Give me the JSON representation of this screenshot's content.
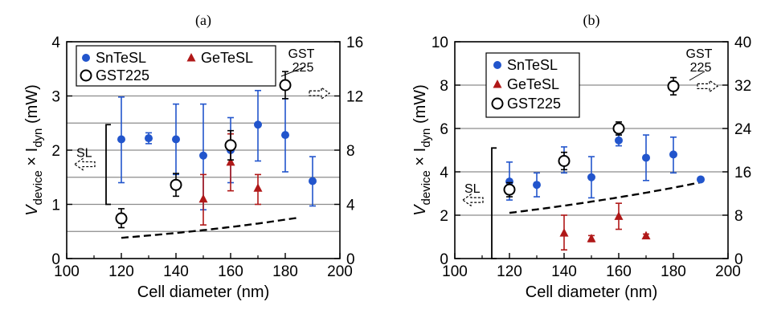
{
  "colors": {
    "snte": "#2255cc",
    "gete": "#b01818",
    "gst": "#000000",
    "grid": "#8c8c8c",
    "bg": "#ffffff"
  },
  "chart_data": [
    {
      "type": "scatter",
      "panel_label": "(a)",
      "xlabel": "Cell diameter (nm)",
      "ylabel_main": "V",
      "ylabel_sub1": "device",
      "ylabel_times": " × I",
      "ylabel_sub2": "dyn",
      "ylabel_unit": " (mW)",
      "xlim": [
        100,
        200
      ],
      "ylim": [
        0,
        4
      ],
      "y2lim": [
        0,
        16
      ],
      "xticks": [
        "100",
        "120",
        "140",
        "160",
        "180",
        "200"
      ],
      "yticks": [
        "0",
        "1",
        "2",
        "3",
        "4"
      ],
      "y2ticks": [
        "0",
        "4",
        "8",
        "12",
        "16"
      ],
      "gridlines": [
        0.5,
        1,
        1.5,
        2,
        2.5,
        3
      ],
      "legend": [
        "SnTeSL",
        "GeTeSL",
        "GST225"
      ],
      "series": [
        {
          "name": "SnTeSL",
          "marker": "circle-filled",
          "points": [
            {
              "x": 120,
              "y": 2.2,
              "lo": 1.4,
              "hi": 2.98
            },
            {
              "x": 130,
              "y": 2.22,
              "lo": 2.12,
              "hi": 2.32
            },
            {
              "x": 140,
              "y": 2.2,
              "lo": 1.55,
              "hi": 2.85
            },
            {
              "x": 150,
              "y": 1.9,
              "lo": 0.9,
              "hi": 2.85
            },
            {
              "x": 160,
              "y": 2.0,
              "lo": 1.4,
              "hi": 2.6
            },
            {
              "x": 170,
              "y": 2.47,
              "lo": 1.8,
              "hi": 3.1
            },
            {
              "x": 180,
              "y": 2.28,
              "lo": 1.6,
              "hi": 2.95
            },
            {
              "x": 190,
              "y": 1.43,
              "lo": 0.97,
              "hi": 1.88
            }
          ]
        },
        {
          "name": "GeTeSL",
          "marker": "triangle-filled",
          "points": [
            {
              "x": 150,
              "y": 1.1,
              "lo": 0.62,
              "hi": 1.55
            },
            {
              "x": 160,
              "y": 1.78,
              "lo": 1.25,
              "hi": 2.3
            },
            {
              "x": 170,
              "y": 1.3,
              "lo": 1.0,
              "hi": 1.55
            }
          ]
        },
        {
          "name": "GST225",
          "marker": "circle-open",
          "points": [
            {
              "x": 120,
              "y": 0.74,
              "lo": 0.57,
              "hi": 0.92
            },
            {
              "x": 140,
              "y": 1.36,
              "lo": 1.15,
              "hi": 1.57
            },
            {
              "x": 160,
              "y": 2.09,
              "lo": 1.82,
              "hi": 2.36
            },
            {
              "x": 180,
              "y": 3.2,
              "lo": 2.95,
              "hi": 3.45
            }
          ]
        }
      ],
      "fit_curve": {
        "style": "dashed",
        "x_start": 120,
        "x_end": 185,
        "a": 0.31,
        "b": 0.105
      },
      "annotations": {
        "sl_label": "SL",
        "sl_bracket": [
          1.0,
          2.47
        ],
        "sl_arrow_y": 1.74,
        "gst_label_1": "GST",
        "gst_label_2": "225",
        "gst_arrow_y": 3.05
      }
    },
    {
      "type": "scatter",
      "panel_label": "(b)",
      "xlabel": "Cell diameter (nm)",
      "ylabel_main": "V",
      "ylabel_sub1": "device",
      "ylabel_times": " × I",
      "ylabel_sub2": "dyn",
      "ylabel_unit": " (mW)",
      "xlim": [
        100,
        200
      ],
      "ylim": [
        0,
        10
      ],
      "y2lim": [
        0,
        40
      ],
      "xticks": [
        "100",
        "120",
        "140",
        "160",
        "180",
        "200"
      ],
      "yticks": [
        "0",
        "2",
        "4",
        "6",
        "8",
        "10"
      ],
      "y2ticks": [
        "0",
        "8",
        "16",
        "24",
        "32",
        "40"
      ],
      "gridlines": [
        2,
        4,
        6,
        8
      ],
      "legend": [
        "SnTeSL",
        "GeTeSL",
        "GST225"
      ],
      "series": [
        {
          "name": "SnTeSL",
          "marker": "circle-filled",
          "points": [
            {
              "x": 120,
              "y": 3.55,
              "lo": 2.7,
              "hi": 4.45
            },
            {
              "x": 130,
              "y": 3.4,
              "lo": 2.85,
              "hi": 3.95
            },
            {
              "x": 140,
              "y": 4.55,
              "lo": 3.95,
              "hi": 5.15
            },
            {
              "x": 150,
              "y": 3.75,
              "lo": 2.8,
              "hi": 4.7
            },
            {
              "x": 160,
              "y": 5.45,
              "lo": 5.2,
              "hi": 5.7
            },
            {
              "x": 170,
              "y": 4.65,
              "lo": 3.6,
              "hi": 5.7
            },
            {
              "x": 180,
              "y": 4.8,
              "lo": 3.95,
              "hi": 5.6
            },
            {
              "x": 190,
              "y": 3.65,
              "lo": 3.57,
              "hi": 3.73
            }
          ]
        },
        {
          "name": "GeTeSL",
          "marker": "triangle-filled",
          "points": [
            {
              "x": 140,
              "y": 1.18,
              "lo": 0.4,
              "hi": 2.0
            },
            {
              "x": 150,
              "y": 0.92,
              "lo": 0.78,
              "hi": 1.06
            },
            {
              "x": 160,
              "y": 1.95,
              "lo": 1.35,
              "hi": 2.55
            },
            {
              "x": 170,
              "y": 1.05,
              "lo": 0.97,
              "hi": 1.13
            }
          ]
        },
        {
          "name": "GST225",
          "marker": "circle-open",
          "points": [
            {
              "x": 120,
              "y": 3.18,
              "lo": 2.85,
              "hi": 3.5
            },
            {
              "x": 140,
              "y": 4.5,
              "lo": 4.1,
              "hi": 4.9
            },
            {
              "x": 160,
              "y": 6.0,
              "lo": 5.7,
              "hi": 6.3
            },
            {
              "x": 180,
              "y": 7.95,
              "lo": 7.55,
              "hi": 8.35
            }
          ]
        }
      ],
      "fit_curve": {
        "style": "dashed",
        "x_start": 120,
        "x_end": 190,
        "a": 1.82,
        "b": 0.0732
      },
      "annotations": {
        "sl_label": "SL",
        "sl_bracket": [
          0,
          5.1
        ],
        "sl_arrow_y": 2.7,
        "gst_label_1": "GST",
        "gst_label_2": "225",
        "gst_arrow_y": 7.95
      }
    }
  ]
}
